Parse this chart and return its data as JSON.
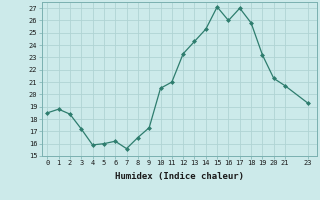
{
  "x_points": [
    0,
    1,
    2,
    3,
    4,
    5,
    6,
    7,
    8,
    9,
    10,
    11,
    12,
    13,
    14,
    15,
    16,
    17,
    18,
    19,
    20,
    21,
    23
  ],
  "y_points": [
    18.5,
    18.8,
    18.4,
    17.2,
    15.9,
    16.0,
    16.2,
    15.6,
    16.5,
    17.3,
    20.5,
    21.0,
    23.3,
    24.3,
    25.3,
    27.1,
    26.0,
    27.0,
    25.8,
    23.2,
    21.3,
    20.7,
    19.3
  ],
  "line_color": "#2e7d6e",
  "bg_color": "#cceaea",
  "grid_color": "#b0d4d4",
  "xlabel": "Humidex (Indice chaleur)",
  "ylim": [
    15,
    27.5
  ],
  "yticks": [
    15,
    16,
    17,
    18,
    19,
    20,
    21,
    22,
    23,
    24,
    25,
    26,
    27
  ],
  "xticks": [
    0,
    1,
    2,
    3,
    4,
    5,
    6,
    7,
    8,
    9,
    10,
    11,
    12,
    13,
    14,
    15,
    16,
    17,
    18,
    19,
    20,
    21,
    23
  ],
  "xlim": [
    -0.5,
    23.8
  ]
}
